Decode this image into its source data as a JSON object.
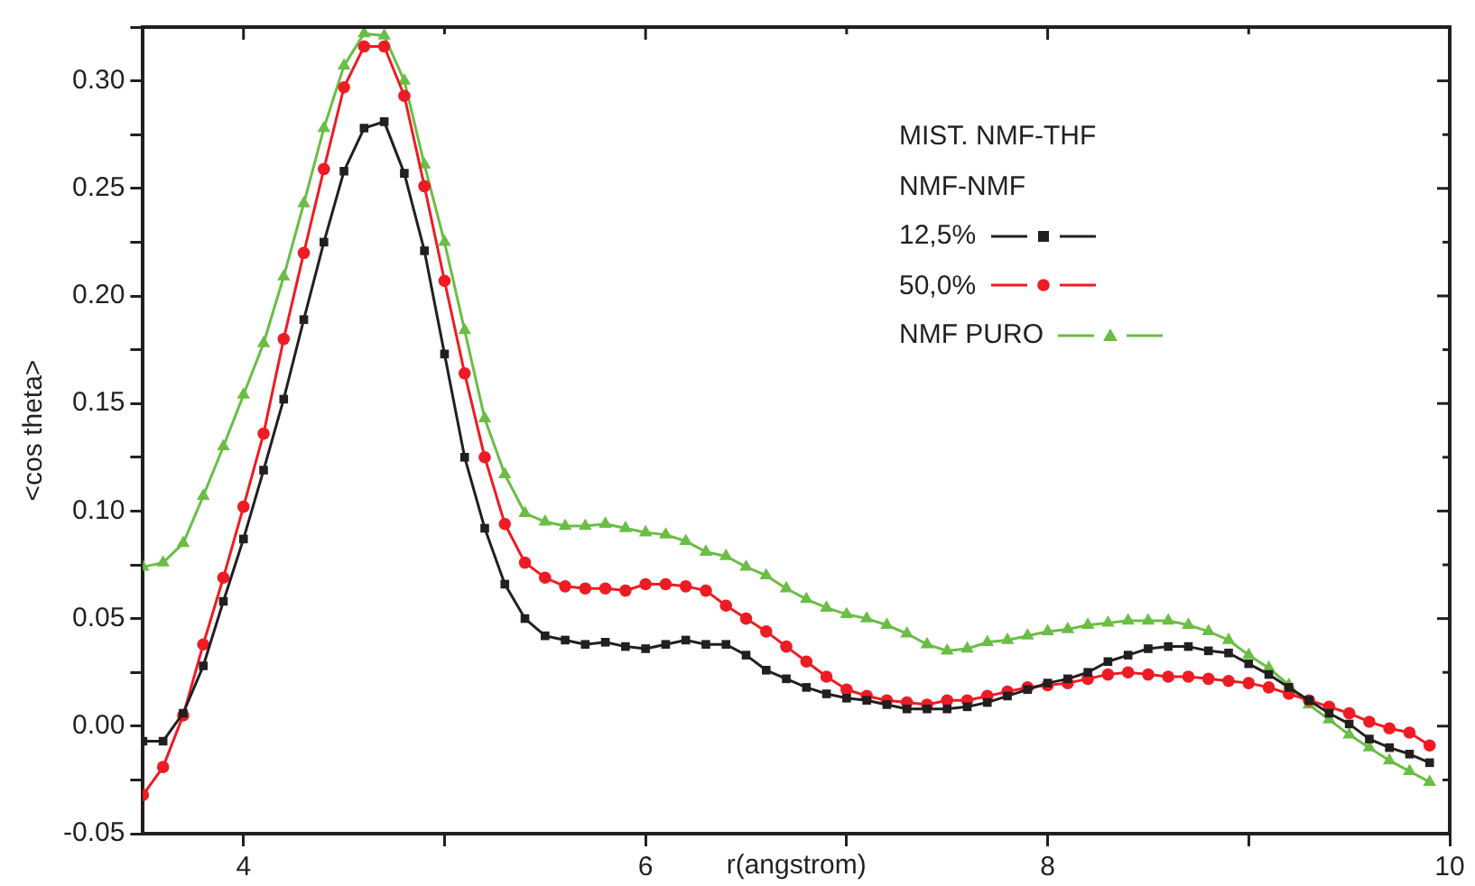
{
  "chart_data": {
    "type": "line",
    "xlabel": "r(angstrom)",
    "ylabel": "<cos theta>",
    "legend_title": "MIST. NMF-THF\nNMF-NMF",
    "x": [
      3.5,
      3.6,
      3.7,
      3.8,
      3.9,
      4.0,
      4.1,
      4.2,
      4.3,
      4.4,
      4.5,
      4.6,
      4.7,
      4.8,
      4.9,
      5.0,
      5.1,
      5.2,
      5.3,
      5.4,
      5.5,
      5.6,
      5.7,
      5.8,
      5.9,
      6.0,
      6.1,
      6.2,
      6.3,
      6.4,
      6.5,
      6.6,
      6.7,
      6.8,
      6.9,
      7.0,
      7.1,
      7.2,
      7.3,
      7.4,
      7.5,
      7.6,
      7.7,
      7.8,
      7.9,
      8.0,
      8.1,
      8.2,
      8.3,
      8.4,
      8.5,
      8.6,
      8.7,
      8.8,
      8.9,
      9.0,
      9.1,
      9.2,
      9.3,
      9.4,
      9.5,
      9.6,
      9.7,
      9.8,
      9.9
    ],
    "series": [
      {
        "name": "12,5%",
        "color": "#231f20",
        "marker": "square",
        "values": [
          -0.007,
          -0.007,
          0.006,
          0.028,
          0.058,
          0.087,
          0.119,
          0.152,
          0.189,
          0.225,
          0.258,
          0.278,
          0.281,
          0.257,
          0.221,
          0.173,
          0.125,
          0.092,
          0.066,
          0.05,
          0.042,
          0.04,
          0.038,
          0.039,
          0.037,
          0.036,
          0.038,
          0.04,
          0.038,
          0.038,
          0.033,
          0.026,
          0.022,
          0.018,
          0.015,
          0.013,
          0.012,
          0.01,
          0.008,
          0.008,
          0.008,
          0.009,
          0.011,
          0.014,
          0.017,
          0.02,
          0.022,
          0.025,
          0.03,
          0.033,
          0.036,
          0.037,
          0.037,
          0.035,
          0.034,
          0.029,
          0.024,
          0.018,
          0.012,
          0.006,
          0.001,
          -0.006,
          -0.01,
          -0.013,
          -0.017
        ]
      },
      {
        "name": "50,0%",
        "color": "#ed1c24",
        "marker": "circle",
        "values": [
          -0.032,
          -0.019,
          0.005,
          0.038,
          0.069,
          0.102,
          0.136,
          0.18,
          0.22,
          0.259,
          0.297,
          0.316,
          0.316,
          0.293,
          0.251,
          0.207,
          0.164,
          0.125,
          0.094,
          0.076,
          0.069,
          0.065,
          0.064,
          0.064,
          0.063,
          0.066,
          0.066,
          0.065,
          0.063,
          0.056,
          0.05,
          0.044,
          0.037,
          0.03,
          0.023,
          0.017,
          0.014,
          0.012,
          0.011,
          0.01,
          0.012,
          0.012,
          0.014,
          0.016,
          0.018,
          0.019,
          0.02,
          0.022,
          0.024,
          0.025,
          0.024,
          0.023,
          0.023,
          0.022,
          0.021,
          0.02,
          0.018,
          0.015,
          0.012,
          0.009,
          0.006,
          0.002,
          -0.001,
          -0.003,
          -0.009
        ]
      },
      {
        "name": "NMF PURO",
        "color": "#6abd45",
        "marker": "triangle",
        "values": [
          0.074,
          0.076,
          0.085,
          0.107,
          0.13,
          0.154,
          0.178,
          0.209,
          0.243,
          0.278,
          0.307,
          0.322,
          0.321,
          0.3,
          0.261,
          0.225,
          0.184,
          0.143,
          0.117,
          0.099,
          0.095,
          0.093,
          0.093,
          0.094,
          0.092,
          0.09,
          0.089,
          0.086,
          0.081,
          0.079,
          0.074,
          0.07,
          0.064,
          0.059,
          0.055,
          0.052,
          0.05,
          0.047,
          0.043,
          0.038,
          0.035,
          0.036,
          0.039,
          0.04,
          0.042,
          0.044,
          0.045,
          0.047,
          0.048,
          0.049,
          0.049,
          0.049,
          0.047,
          0.044,
          0.04,
          0.033,
          0.027,
          0.019,
          0.01,
          0.003,
          -0.004,
          -0.01,
          -0.016,
          -0.021,
          -0.026
        ]
      }
    ],
    "xlim": [
      3.5,
      10
    ],
    "xticks": [
      4,
      {
        "value": 5,
        "label": null
      },
      6,
      {
        "value": 7,
        "label": null
      },
      8,
      {
        "value": 9,
        "label": null
      },
      10
    ],
    "ylim": [
      -0.05,
      0.325
    ],
    "yticks": [
      {
        "value": -0.05,
        "label": "-0.05"
      },
      {
        "value": -0.025,
        "label": null
      },
      {
        "value": 0,
        "label": "0.00"
      },
      {
        "value": 0.025,
        "label": null
      },
      {
        "value": 0.05,
        "label": "0.05"
      },
      {
        "value": 0.075,
        "label": null
      },
      {
        "value": 0.1,
        "label": "0.10"
      },
      {
        "value": 0.125,
        "label": null
      },
      {
        "value": 0.15,
        "label": "0.15"
      },
      {
        "value": 0.175,
        "label": null
      },
      {
        "value": 0.2,
        "label": "0.20"
      },
      {
        "value": 0.225,
        "label": null
      },
      {
        "value": 0.25,
        "label": "0.25"
      },
      {
        "value": 0.275,
        "label": null
      },
      {
        "value": 0.3,
        "label": "0.30"
      },
      {
        "value": 0.325,
        "label": null
      }
    ],
    "legend": "top right",
    "grid": false
  }
}
